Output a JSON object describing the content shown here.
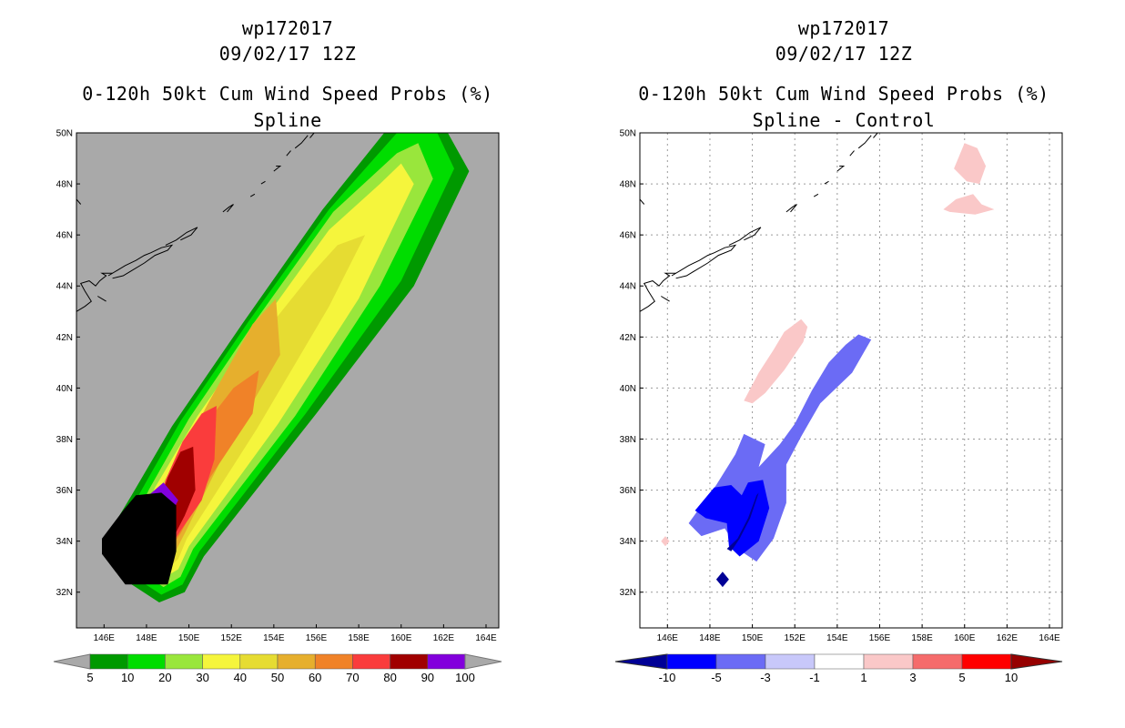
{
  "left_panel": {
    "storm_id": "wp172017",
    "datetime": "09/02/17 12Z",
    "title": "0-120h 50kt Cum Wind Speed Probs (%)",
    "subtitle": "Spline"
  },
  "right_panel": {
    "storm_id": "wp172017",
    "datetime": "09/02/17 12Z",
    "title": "0-120h 50kt Cum Wind Speed Probs (%)",
    "subtitle": "Spline - Control"
  },
  "colors": {
    "land_mask": "#a9a9a9",
    "prob": [
      "#009900",
      "#00dd00",
      "#99e63c",
      "#f5f53c",
      "#e6dc32",
      "#e6af2d",
      "#f08228",
      "#fa3c3c",
      "#a00000",
      "#8200dc"
    ],
    "diff": [
      "#000096",
      "#0000ff",
      "#6b6bf5",
      "#c8c8fa",
      "#ffffff",
      "#fac8c8",
      "#f56b6b",
      "#ff0000",
      "#960000"
    ]
  },
  "chart_data": [
    {
      "type": "filled-contour-map",
      "title": "0-120h 50kt Cum Wind Speed Probs (%)",
      "subtitle": "Spline",
      "xlim": [
        144.7,
        164.6
      ],
      "ylim": [
        30.6,
        50.0
      ],
      "x_ticks": [
        146,
        148,
        150,
        152,
        154,
        156,
        158,
        160,
        162,
        164
      ],
      "x_tick_labels": [
        "146E",
        "148E",
        "150E",
        "152E",
        "154E",
        "156E",
        "158E",
        "160E",
        "162E",
        "164E"
      ],
      "y_ticks": [
        32,
        34,
        36,
        38,
        40,
        42,
        44,
        46,
        48,
        50
      ],
      "y_tick_labels": [
        "32N",
        "34N",
        "36N",
        "38N",
        "40N",
        "42N",
        "44N",
        "46N",
        "48N",
        "50N"
      ],
      "colorbar_labels": [
        "5",
        "10",
        "20",
        "30",
        "40",
        "50",
        "60",
        "70",
        "80",
        "90",
        "100"
      ],
      "contours": [
        {
          "level": 5,
          "polygon": [
            [
              146.4,
              33.5
            ],
            [
              147.3,
              32.3
            ],
            [
              148.6,
              31.6
            ],
            [
              149.8,
              32.0
            ],
            [
              150.7,
              33.4
            ],
            [
              156.0,
              39.0
            ],
            [
              160.6,
              44.0
            ],
            [
              163.2,
              48.5
            ],
            [
              162.2,
              50.0
            ],
            [
              159.2,
              50.0
            ],
            [
              156.3,
              47.0
            ],
            [
              152.5,
              42.5
            ],
            [
              149.2,
              38.5
            ],
            [
              147.3,
              35.8
            ],
            [
              146.0,
              34.0
            ]
          ]
        },
        {
          "level": 10,
          "polygon": [
            [
              146.9,
              33.3
            ],
            [
              147.6,
              32.5
            ],
            [
              148.7,
              31.9
            ],
            [
              149.7,
              32.3
            ],
            [
              150.5,
              33.6
            ],
            [
              155.5,
              39.0
            ],
            [
              160.0,
              44.2
            ],
            [
              162.5,
              48.6
            ],
            [
              161.7,
              50.0
            ],
            [
              159.8,
              50.0
            ],
            [
              156.6,
              47.0
            ],
            [
              152.8,
              42.6
            ],
            [
              149.6,
              38.7
            ],
            [
              147.7,
              35.9
            ],
            [
              146.6,
              34.0
            ]
          ]
        },
        {
          "level": 20,
          "polygon": [
            [
              147.3,
              33.2
            ],
            [
              147.9,
              32.7
            ],
            [
              148.8,
              32.2
            ],
            [
              149.6,
              32.6
            ],
            [
              150.2,
              33.7
            ],
            [
              155.0,
              38.9
            ],
            [
              159.0,
              44.0
            ],
            [
              161.5,
              48.2
            ],
            [
              160.8,
              49.6
            ],
            [
              159.8,
              49.2
            ],
            [
              156.8,
              46.9
            ],
            [
              153.1,
              42.6
            ],
            [
              150.0,
              38.8
            ],
            [
              148.1,
              36.0
            ],
            [
              147.0,
              34.0
            ]
          ]
        },
        {
          "level": 30,
          "polygon": [
            [
              147.6,
              33.4
            ],
            [
              148.3,
              32.9
            ],
            [
              148.9,
              32.6
            ],
            [
              149.5,
              32.9
            ],
            [
              150.0,
              33.8
            ],
            [
              154.2,
              38.6
            ],
            [
              158.0,
              43.5
            ],
            [
              160.6,
              48.0
            ],
            [
              160.0,
              48.8
            ],
            [
              159.0,
              48.0
            ],
            [
              156.6,
              46.2
            ],
            [
              153.4,
              42.5
            ],
            [
              150.4,
              38.9
            ],
            [
              148.4,
              36.1
            ],
            [
              147.4,
              34.2
            ]
          ]
        },
        {
          "level": 40,
          "polygon": [
            [
              147.9,
              33.6
            ],
            [
              148.6,
              33.2
            ],
            [
              149.1,
              33.0
            ],
            [
              149.5,
              33.3
            ],
            [
              149.9,
              34.1
            ],
            [
              153.2,
              38.4
            ],
            [
              156.6,
              43.2
            ],
            [
              158.3,
              46.0
            ],
            [
              157.0,
              45.6
            ],
            [
              155.8,
              44.5
            ],
            [
              153.4,
              42.0
            ],
            [
              150.7,
              38.8
            ],
            [
              148.7,
              36.2
            ],
            [
              147.8,
              34.4
            ]
          ]
        },
        {
          "level": 50,
          "polygon": [
            [
              148.2,
              33.8
            ],
            [
              148.9,
              33.5
            ],
            [
              149.3,
              33.5
            ],
            [
              149.8,
              34.3
            ],
            [
              152.0,
              38.0
            ],
            [
              154.3,
              41.3
            ],
            [
              154.1,
              43.5
            ],
            [
              153.0,
              42.5
            ],
            [
              150.9,
              39.4
            ],
            [
              149.0,
              36.4
            ],
            [
              148.1,
              34.6
            ]
          ]
        },
        {
          "level": 60,
          "polygon": [
            [
              148.4,
              34.0
            ],
            [
              149.1,
              33.7
            ],
            [
              149.6,
              34.3
            ],
            [
              151.0,
              36.5
            ],
            [
              153.0,
              39.0
            ],
            [
              153.3,
              40.7
            ],
            [
              152.1,
              40.0
            ],
            [
              150.7,
              38.5
            ],
            [
              149.2,
              36.6
            ],
            [
              148.3,
              34.8
            ]
          ]
        },
        {
          "level": 70,
          "polygon": [
            [
              148.5,
              34.2
            ],
            [
              149.2,
              33.9
            ],
            [
              149.6,
              34.4
            ],
            [
              150.6,
              35.6
            ],
            [
              151.2,
              37.2
            ],
            [
              151.3,
              39.3
            ],
            [
              150.6,
              39.0
            ],
            [
              149.7,
              37.9
            ],
            [
              148.9,
              36.4
            ],
            [
              148.4,
              35.0
            ]
          ]
        },
        {
          "level": 80,
          "polygon": [
            [
              148.6,
              34.5
            ],
            [
              149.3,
              34.2
            ],
            [
              149.8,
              35.0
            ],
            [
              150.3,
              36.0
            ],
            [
              150.2,
              37.7
            ],
            [
              149.6,
              37.5
            ],
            [
              149.0,
              36.5
            ],
            [
              148.5,
              35.3
            ]
          ]
        },
        {
          "level": 90,
          "polygon": [
            [
              148.5,
              34.3
            ],
            [
              149.2,
              34.2
            ],
            [
              149.1,
              35.0
            ],
            [
              149.5,
              35.6
            ],
            [
              148.8,
              36.3
            ],
            [
              148.1,
              35.8
            ],
            [
              148.0,
              34.9
            ]
          ]
        },
        {
          "level": 100,
          "polygon": [
            [
              145.9,
              33.5
            ],
            [
              147.0,
              32.3
            ],
            [
              148.0,
              32.3
            ],
            [
              149.0,
              32.3
            ],
            [
              149.4,
              33.6
            ],
            [
              149.4,
              35.4
            ],
            [
              148.7,
              35.9
            ],
            [
              147.5,
              35.8
            ],
            [
              146.9,
              35.2
            ],
            [
              145.9,
              34.1
            ]
          ]
        }
      ]
    },
    {
      "type": "filled-contour-map",
      "title": "0-120h 50kt Cum Wind Speed Probs (%)",
      "subtitle": "Spline - Control",
      "xlim": [
        144.7,
        164.6
      ],
      "ylim": [
        30.6,
        50.0
      ],
      "x_ticks": [
        146,
        148,
        150,
        152,
        154,
        156,
        158,
        160,
        162,
        164
      ],
      "x_tick_labels": [
        "146E",
        "148E",
        "150E",
        "152E",
        "154E",
        "156E",
        "158E",
        "160E",
        "162E",
        "164E"
      ],
      "y_ticks": [
        32,
        34,
        36,
        38,
        40,
        42,
        44,
        46,
        48,
        50
      ],
      "y_tick_labels": [
        "32N",
        "34N",
        "36N",
        "38N",
        "40N",
        "42N",
        "44N",
        "46N",
        "48N",
        "50N"
      ],
      "colorbar_labels": [
        "-10",
        "-5",
        "-3",
        "-1",
        "1",
        "3",
        "5",
        "10"
      ],
      "contours": [
        {
          "level": -3,
          "sign": "negative",
          "polygon": [
            [
              147.0,
              34.7
            ],
            [
              148.3,
              36.2
            ],
            [
              149.2,
              37.4
            ],
            [
              149.6,
              38.2
            ],
            [
              150.6,
              37.8
            ],
            [
              150.3,
              36.9
            ],
            [
              151.3,
              37.8
            ],
            [
              152.0,
              38.6
            ],
            [
              152.8,
              39.9
            ],
            [
              153.6,
              41.0
            ],
            [
              154.4,
              41.7
            ],
            [
              155.0,
              42.1
            ],
            [
              155.6,
              41.9
            ],
            [
              154.7,
              40.6
            ],
            [
              153.2,
              39.4
            ],
            [
              152.3,
              38.1
            ],
            [
              151.6,
              37.0
            ],
            [
              151.6,
              35.5
            ],
            [
              151.0,
              34.1
            ],
            [
              150.2,
              33.2
            ],
            [
              149.3,
              33.7
            ],
            [
              148.7,
              34.5
            ],
            [
              147.6,
              34.2
            ]
          ]
        },
        {
          "level": -5,
          "sign": "negative",
          "polygon": [
            [
              147.3,
              35.2
            ],
            [
              148.2,
              36.1
            ],
            [
              149.0,
              36.2
            ],
            [
              149.5,
              35.8
            ],
            [
              149.8,
              36.3
            ],
            [
              150.5,
              36.4
            ],
            [
              150.8,
              35.3
            ],
            [
              150.3,
              34.0
            ],
            [
              149.4,
              33.4
            ],
            [
              148.9,
              33.8
            ],
            [
              148.8,
              34.7
            ],
            [
              147.8,
              34.9
            ]
          ]
        },
        {
          "level": -10,
          "sign": "negative",
          "polygon": [
            [
              148.8,
              33.7
            ],
            [
              149.3,
              34.1
            ],
            [
              149.8,
              34.9
            ],
            [
              150.2,
              35.8
            ],
            [
              150.3,
              35.9
            ],
            [
              149.9,
              34.9
            ],
            [
              149.4,
              34.1
            ],
            [
              149.0,
              33.6
            ]
          ]
        },
        {
          "level": -10,
          "sign": "negative",
          "polygon": [
            [
              148.3,
              32.5
            ],
            [
              148.6,
              32.8
            ],
            [
              148.9,
              32.5
            ],
            [
              148.6,
              32.2
            ]
          ]
        },
        {
          "level": 1,
          "sign": "positive",
          "polygon": [
            [
              149.6,
              39.5
            ],
            [
              150.3,
              40.6
            ],
            [
              151.0,
              41.5
            ],
            [
              151.5,
              42.2
            ],
            [
              152.3,
              42.7
            ],
            [
              152.6,
              42.4
            ],
            [
              152.4,
              41.8
            ],
            [
              151.5,
              40.7
            ],
            [
              150.6,
              39.8
            ],
            [
              150.0,
              39.4
            ]
          ]
        },
        {
          "level": 1,
          "sign": "positive",
          "polygon": [
            [
              159.5,
              48.6
            ],
            [
              160.0,
              49.6
            ],
            [
              160.6,
              49.4
            ],
            [
              161.0,
              48.7
            ],
            [
              160.7,
              48.0
            ],
            [
              160.1,
              48.1
            ]
          ]
        },
        {
          "level": 1,
          "sign": "positive",
          "polygon": [
            [
              159.0,
              47.0
            ],
            [
              159.6,
              47.4
            ],
            [
              160.4,
              47.6
            ],
            [
              160.8,
              47.2
            ],
            [
              161.4,
              47.0
            ],
            [
              160.5,
              46.8
            ],
            [
              159.3,
              46.9
            ]
          ]
        },
        {
          "level": 1,
          "sign": "positive",
          "polygon": [
            [
              145.7,
              34.0
            ],
            [
              145.9,
              34.2
            ],
            [
              146.1,
              34.0
            ],
            [
              145.9,
              33.8
            ]
          ]
        }
      ]
    }
  ]
}
